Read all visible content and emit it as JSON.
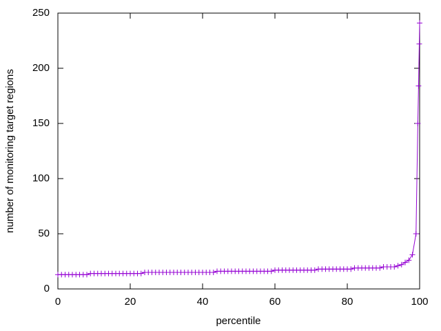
{
  "chart_data": {
    "type": "line",
    "xlabel": "percentile",
    "ylabel": "number of monitoring target regions",
    "x": [
      0,
      1,
      2,
      3,
      4,
      5,
      6,
      7,
      8,
      9,
      10,
      11,
      12,
      13,
      14,
      15,
      16,
      17,
      18,
      19,
      20,
      21,
      22,
      23,
      24,
      25,
      26,
      27,
      28,
      29,
      30,
      31,
      32,
      33,
      34,
      35,
      36,
      37,
      38,
      39,
      40,
      41,
      42,
      43,
      44,
      45,
      46,
      47,
      48,
      49,
      50,
      51,
      52,
      53,
      54,
      55,
      56,
      57,
      58,
      59,
      60,
      61,
      62,
      63,
      64,
      65,
      66,
      67,
      68,
      69,
      70,
      71,
      72,
      73,
      74,
      75,
      76,
      77,
      78,
      79,
      80,
      81,
      82,
      83,
      84,
      85,
      86,
      87,
      88,
      89,
      90,
      91,
      92,
      93,
      94,
      95,
      96,
      97,
      98,
      99,
      99.5,
      99.7,
      99.9,
      100
    ],
    "values": [
      13,
      13,
      13,
      13,
      13,
      13,
      13,
      13,
      13,
      14,
      14,
      14,
      14,
      14,
      14,
      14,
      14,
      14,
      14,
      14,
      14,
      14,
      14,
      14,
      15,
      15,
      15,
      15,
      15,
      15,
      15,
      15,
      15,
      15,
      15,
      15,
      15,
      15,
      15,
      15,
      15,
      15,
      15,
      15,
      16,
      16,
      16,
      16,
      16,
      16,
      16,
      16,
      16,
      16,
      16,
      16,
      16,
      16,
      16,
      16,
      17,
      17,
      17,
      17,
      17,
      17,
      17,
      17,
      17,
      17,
      17,
      17,
      18,
      18,
      18,
      18,
      18,
      18,
      18,
      18,
      18,
      18,
      19,
      19,
      19,
      19,
      19,
      19,
      19,
      19,
      20,
      20,
      20,
      20,
      21,
      22,
      24,
      26,
      31,
      50,
      150,
      184,
      222,
      241
    ],
    "color": "#9400d3",
    "markers": true,
    "xlim": [
      0,
      100
    ],
    "xticks": [
      0,
      20,
      40,
      60,
      80,
      100
    ],
    "ylim": [
      0,
      250
    ],
    "yticks": [
      0,
      50,
      100,
      150,
      200,
      250
    ],
    "grid": false
  }
}
